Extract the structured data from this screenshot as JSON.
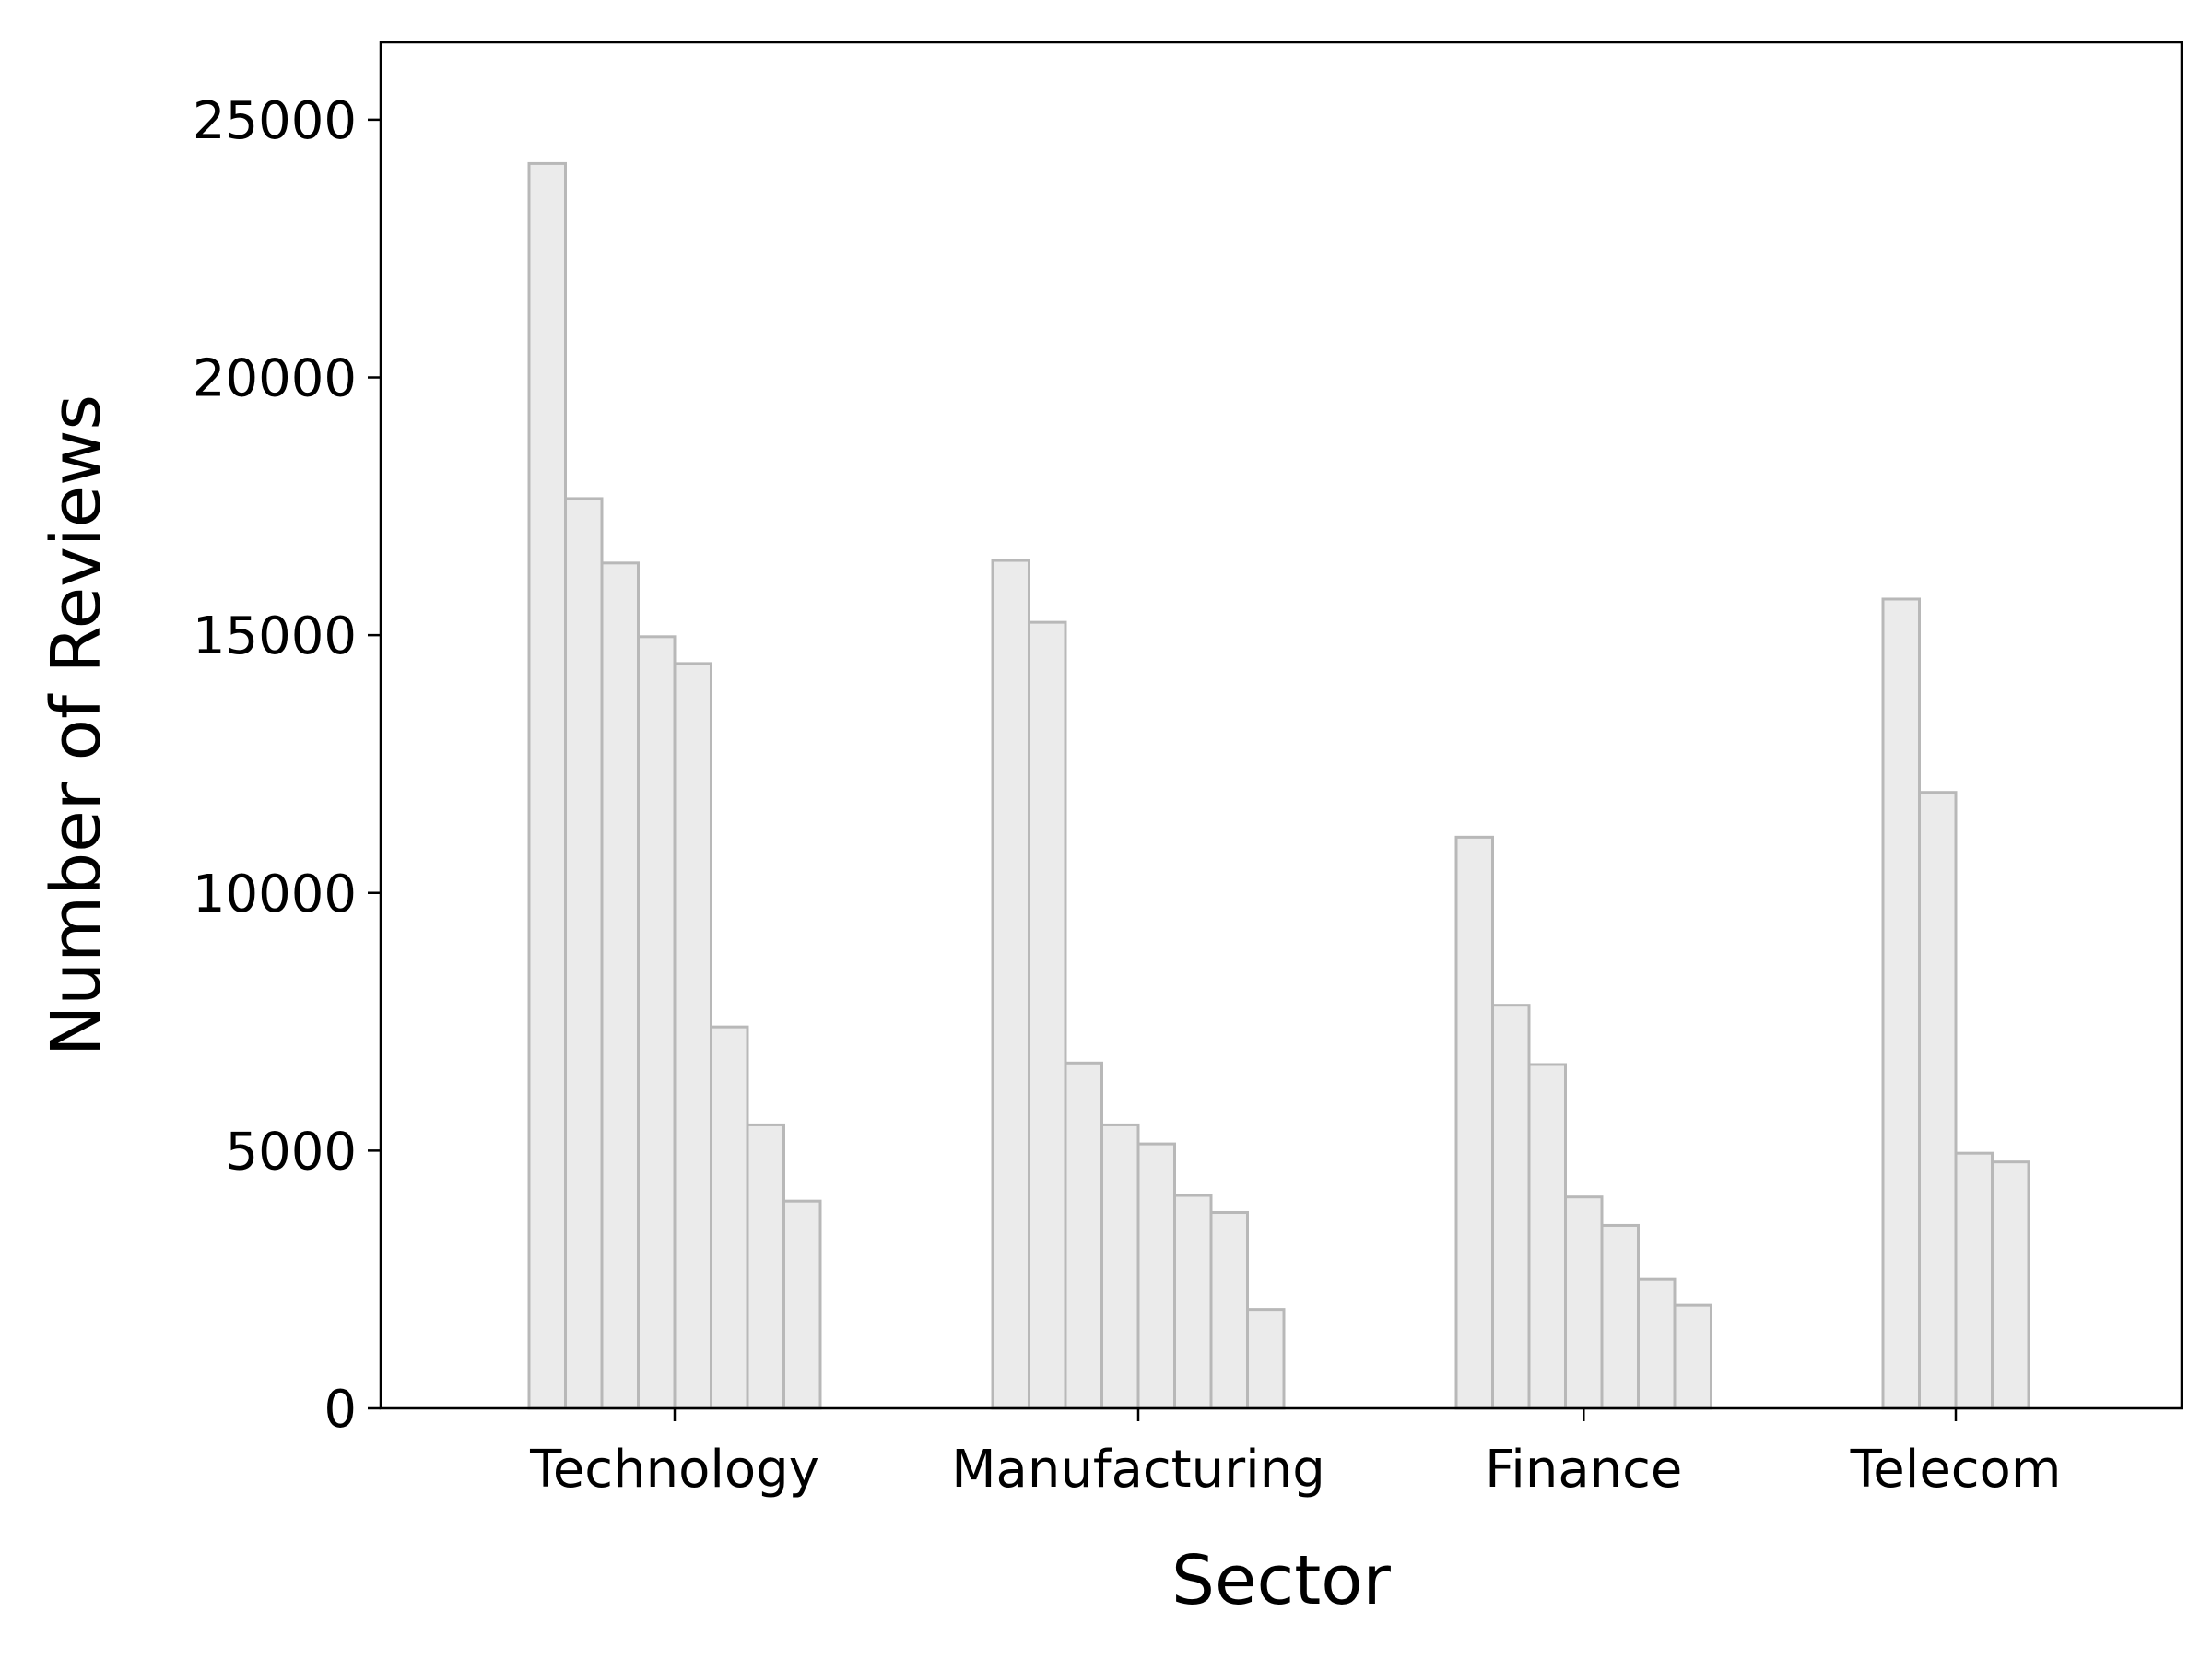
{
  "chart_data": {
    "type": "bar",
    "title": "",
    "xlabel": "Sector",
    "ylabel": "Number of Reviews",
    "ylim": [
      0,
      26500
    ],
    "yticks": [
      0,
      5000,
      10000,
      15000,
      20000,
      25000
    ],
    "grid": false,
    "legend": "none",
    "bar_fill": "#ebebeb",
    "bar_stroke": "#b8b8b8",
    "groups": [
      {
        "category": "Technology",
        "values": [
          24150,
          17650,
          16400,
          14970,
          14450,
          7400,
          5500,
          4020
        ]
      },
      {
        "category": "Manufacturing",
        "values": [
          16450,
          15250,
          6700,
          5500,
          5130,
          4130,
          3800,
          1920
        ]
      },
      {
        "category": "Finance",
        "values": [
          11080,
          7820,
          6670,
          4100,
          3550,
          2500,
          2000
        ]
      },
      {
        "category": "Telecom",
        "values": [
          15700,
          11950,
          4950,
          4780
        ]
      }
    ]
  }
}
